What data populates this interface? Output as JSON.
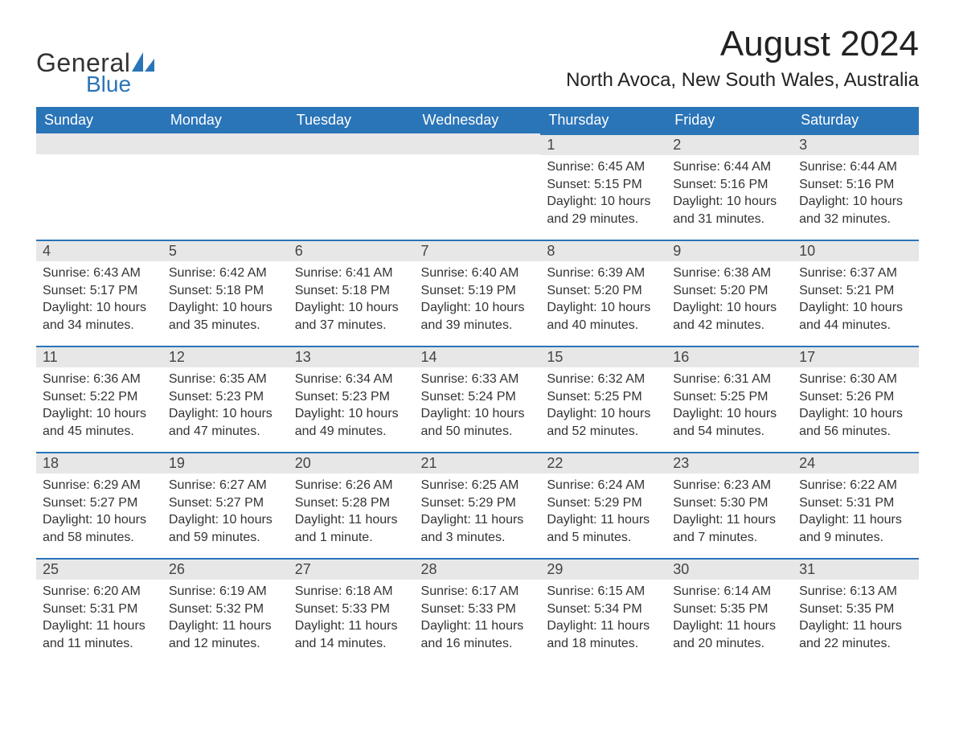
{
  "logo": {
    "part1": "General",
    "part2": "Blue"
  },
  "title": "August 2024",
  "location": "North Avoca, New South Wales, Australia",
  "colors": {
    "header_bg": "#2a74b8",
    "header_text": "#ffffff",
    "daynum_bg": "#e7e7e7",
    "rule": "#2a74b8",
    "text": "#333333",
    "logo_blue": "#2a74b8"
  },
  "day_headers": [
    "Sunday",
    "Monday",
    "Tuesday",
    "Wednesday",
    "Thursday",
    "Friday",
    "Saturday"
  ],
  "weeks": [
    [
      null,
      null,
      null,
      null,
      {
        "n": "1",
        "sunrise": "Sunrise: 6:45 AM",
        "sunset": "Sunset: 5:15 PM",
        "daylight": "Daylight: 10 hours and 29 minutes."
      },
      {
        "n": "2",
        "sunrise": "Sunrise: 6:44 AM",
        "sunset": "Sunset: 5:16 PM",
        "daylight": "Daylight: 10 hours and 31 minutes."
      },
      {
        "n": "3",
        "sunrise": "Sunrise: 6:44 AM",
        "sunset": "Sunset: 5:16 PM",
        "daylight": "Daylight: 10 hours and 32 minutes."
      }
    ],
    [
      {
        "n": "4",
        "sunrise": "Sunrise: 6:43 AM",
        "sunset": "Sunset: 5:17 PM",
        "daylight": "Daylight: 10 hours and 34 minutes."
      },
      {
        "n": "5",
        "sunrise": "Sunrise: 6:42 AM",
        "sunset": "Sunset: 5:18 PM",
        "daylight": "Daylight: 10 hours and 35 minutes."
      },
      {
        "n": "6",
        "sunrise": "Sunrise: 6:41 AM",
        "sunset": "Sunset: 5:18 PM",
        "daylight": "Daylight: 10 hours and 37 minutes."
      },
      {
        "n": "7",
        "sunrise": "Sunrise: 6:40 AM",
        "sunset": "Sunset: 5:19 PM",
        "daylight": "Daylight: 10 hours and 39 minutes."
      },
      {
        "n": "8",
        "sunrise": "Sunrise: 6:39 AM",
        "sunset": "Sunset: 5:20 PM",
        "daylight": "Daylight: 10 hours and 40 minutes."
      },
      {
        "n": "9",
        "sunrise": "Sunrise: 6:38 AM",
        "sunset": "Sunset: 5:20 PM",
        "daylight": "Daylight: 10 hours and 42 minutes."
      },
      {
        "n": "10",
        "sunrise": "Sunrise: 6:37 AM",
        "sunset": "Sunset: 5:21 PM",
        "daylight": "Daylight: 10 hours and 44 minutes."
      }
    ],
    [
      {
        "n": "11",
        "sunrise": "Sunrise: 6:36 AM",
        "sunset": "Sunset: 5:22 PM",
        "daylight": "Daylight: 10 hours and 45 minutes."
      },
      {
        "n": "12",
        "sunrise": "Sunrise: 6:35 AM",
        "sunset": "Sunset: 5:23 PM",
        "daylight": "Daylight: 10 hours and 47 minutes."
      },
      {
        "n": "13",
        "sunrise": "Sunrise: 6:34 AM",
        "sunset": "Sunset: 5:23 PM",
        "daylight": "Daylight: 10 hours and 49 minutes."
      },
      {
        "n": "14",
        "sunrise": "Sunrise: 6:33 AM",
        "sunset": "Sunset: 5:24 PM",
        "daylight": "Daylight: 10 hours and 50 minutes."
      },
      {
        "n": "15",
        "sunrise": "Sunrise: 6:32 AM",
        "sunset": "Sunset: 5:25 PM",
        "daylight": "Daylight: 10 hours and 52 minutes."
      },
      {
        "n": "16",
        "sunrise": "Sunrise: 6:31 AM",
        "sunset": "Sunset: 5:25 PM",
        "daylight": "Daylight: 10 hours and 54 minutes."
      },
      {
        "n": "17",
        "sunrise": "Sunrise: 6:30 AM",
        "sunset": "Sunset: 5:26 PM",
        "daylight": "Daylight: 10 hours and 56 minutes."
      }
    ],
    [
      {
        "n": "18",
        "sunrise": "Sunrise: 6:29 AM",
        "sunset": "Sunset: 5:27 PM",
        "daylight": "Daylight: 10 hours and 58 minutes."
      },
      {
        "n": "19",
        "sunrise": "Sunrise: 6:27 AM",
        "sunset": "Sunset: 5:27 PM",
        "daylight": "Daylight: 10 hours and 59 minutes."
      },
      {
        "n": "20",
        "sunrise": "Sunrise: 6:26 AM",
        "sunset": "Sunset: 5:28 PM",
        "daylight": "Daylight: 11 hours and 1 minute."
      },
      {
        "n": "21",
        "sunrise": "Sunrise: 6:25 AM",
        "sunset": "Sunset: 5:29 PM",
        "daylight": "Daylight: 11 hours and 3 minutes."
      },
      {
        "n": "22",
        "sunrise": "Sunrise: 6:24 AM",
        "sunset": "Sunset: 5:29 PM",
        "daylight": "Daylight: 11 hours and 5 minutes."
      },
      {
        "n": "23",
        "sunrise": "Sunrise: 6:23 AM",
        "sunset": "Sunset: 5:30 PM",
        "daylight": "Daylight: 11 hours and 7 minutes."
      },
      {
        "n": "24",
        "sunrise": "Sunrise: 6:22 AM",
        "sunset": "Sunset: 5:31 PM",
        "daylight": "Daylight: 11 hours and 9 minutes."
      }
    ],
    [
      {
        "n": "25",
        "sunrise": "Sunrise: 6:20 AM",
        "sunset": "Sunset: 5:31 PM",
        "daylight": "Daylight: 11 hours and 11 minutes."
      },
      {
        "n": "26",
        "sunrise": "Sunrise: 6:19 AM",
        "sunset": "Sunset: 5:32 PM",
        "daylight": "Daylight: 11 hours and 12 minutes."
      },
      {
        "n": "27",
        "sunrise": "Sunrise: 6:18 AM",
        "sunset": "Sunset: 5:33 PM",
        "daylight": "Daylight: 11 hours and 14 minutes."
      },
      {
        "n": "28",
        "sunrise": "Sunrise: 6:17 AM",
        "sunset": "Sunset: 5:33 PM",
        "daylight": "Daylight: 11 hours and 16 minutes."
      },
      {
        "n": "29",
        "sunrise": "Sunrise: 6:15 AM",
        "sunset": "Sunset: 5:34 PM",
        "daylight": "Daylight: 11 hours and 18 minutes."
      },
      {
        "n": "30",
        "sunrise": "Sunrise: 6:14 AM",
        "sunset": "Sunset: 5:35 PM",
        "daylight": "Daylight: 11 hours and 20 minutes."
      },
      {
        "n": "31",
        "sunrise": "Sunrise: 6:13 AM",
        "sunset": "Sunset: 5:35 PM",
        "daylight": "Daylight: 11 hours and 22 minutes."
      }
    ]
  ]
}
